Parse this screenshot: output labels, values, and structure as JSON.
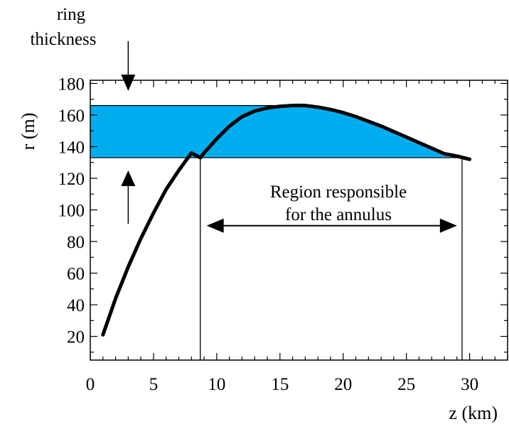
{
  "chart_data": {
    "type": "line",
    "xlabel": "z (km)",
    "ylabel": "r (m)",
    "xlim": [
      0,
      33
    ],
    "ylim": [
      5,
      182
    ],
    "x_ticks": [
      0,
      5,
      10,
      15,
      20,
      25,
      30
    ],
    "y_ticks": [
      20,
      40,
      60,
      80,
      100,
      120,
      140,
      160,
      180
    ],
    "minor_x_step": 1,
    "minor_y_step": 10,
    "grid": false,
    "series": [
      {
        "x": [
          1,
          2,
          3,
          4,
          5,
          6,
          7,
          8,
          8.7,
          9,
          10,
          11,
          12,
          13,
          14,
          15,
          16,
          16.5,
          17,
          18,
          19,
          20,
          21,
          22,
          23,
          24,
          25,
          26,
          27,
          28,
          29,
          29.5,
          30
        ],
        "y": [
          21,
          44,
          64,
          82,
          98,
          113,
          125,
          136,
          133,
          136,
          145,
          153,
          159,
          162.5,
          164.5,
          165.5,
          166,
          166.1,
          166,
          165,
          163.5,
          161.5,
          159,
          156,
          153,
          149.5,
          146,
          142.5,
          139,
          135.5,
          134,
          133,
          132
        ]
      }
    ],
    "band": {
      "y_low": 133,
      "y_high": 166,
      "x_start": 0,
      "color": "#00aeef"
    },
    "vlines": [
      8.7,
      29.4
    ],
    "ring_thickness": {
      "label_line1": "ring",
      "label_line2": "thickness",
      "x": 3
    },
    "region_annotation": {
      "line1": "Region responsible",
      "line2": "for the annulus",
      "x_from": 9.2,
      "x_to": 29.0,
      "y": 90
    }
  }
}
